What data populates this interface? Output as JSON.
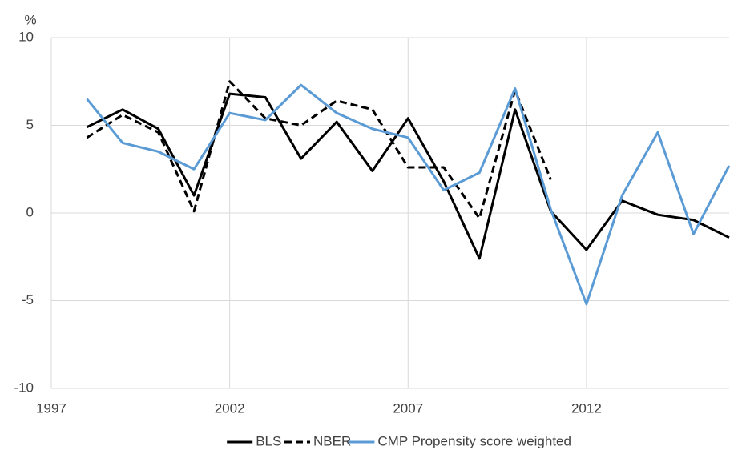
{
  "chart_data": {
    "type": "line",
    "y_unit": "%",
    "x": [
      1998,
      1999,
      2000,
      2001,
      2002,
      2003,
      2004,
      2005,
      2006,
      2007,
      2008,
      2009,
      2010,
      2011,
      2012,
      2013,
      2014,
      2015,
      2016
    ],
    "series": [
      {
        "name": "BLS",
        "color": "#000000",
        "dash": false,
        "values": [
          4.9,
          5.9,
          4.8,
          1.0,
          6.8,
          6.6,
          3.1,
          5.2,
          2.4,
          5.4,
          1.8,
          -2.6,
          5.9,
          0.1,
          -2.1,
          0.7,
          -0.1,
          -0.4,
          -1.4
        ]
      },
      {
        "name": "NBER",
        "color": "#000000",
        "dash": true,
        "values": [
          4.3,
          5.6,
          4.6,
          0.1,
          7.5,
          5.4,
          5.0,
          6.4,
          5.9,
          2.6,
          2.6,
          -0.3,
          7.0,
          1.9,
          null,
          null,
          null,
          null,
          null
        ]
      },
      {
        "name": "CMP Propensity score weighted",
        "color": "#5b9bd5",
        "dash": false,
        "values": [
          6.5,
          4.0,
          3.5,
          2.5,
          5.7,
          5.3,
          7.3,
          5.7,
          4.8,
          4.3,
          1.3,
          2.3,
          7.1,
          0.2,
          -5.2,
          1.0,
          4.6,
          -1.2,
          2.7
        ]
      }
    ],
    "xlim": [
      1997,
      2016
    ],
    "xticks": [
      1997,
      2002,
      2007,
      2012
    ],
    "ylim": [
      -10,
      10
    ],
    "yticks": [
      -10,
      -5,
      0,
      5,
      10
    ],
    "grid": true,
    "legend": "bottom"
  }
}
